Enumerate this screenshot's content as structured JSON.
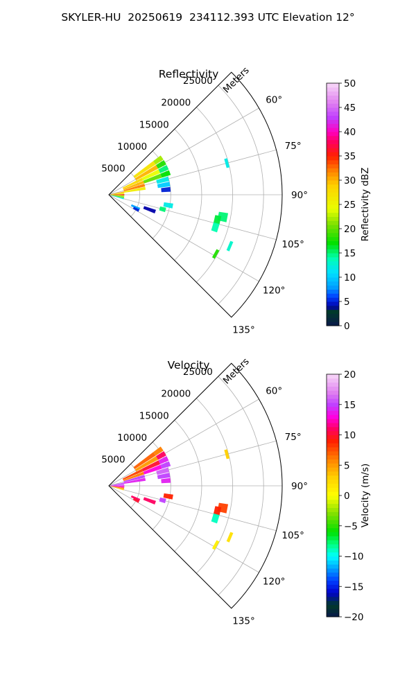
{
  "figure": {
    "title": "SKYLER-HU  20250619  234112.393 UTC Elevation 12°"
  },
  "chart_data": [
    {
      "type": "polar-sector",
      "title": "Reflectivity",
      "range_label": "Meters",
      "angle_range_deg": [
        45,
        135
      ],
      "r_max": 28000,
      "r_ticks": [
        5000,
        10000,
        15000,
        20000,
        25000
      ],
      "angle_ticks": [
        60,
        75,
        90,
        105,
        120,
        135
      ],
      "grid": true,
      "colorbar": {
        "label": "Reflectivity dBZ",
        "min": 0,
        "max": 50,
        "ticks": [
          0,
          5,
          10,
          15,
          20,
          25,
          30,
          35,
          40,
          45,
          50
        ]
      },
      "echoes": [
        {
          "az": 80,
          "r_from": 300,
          "r_to": 2500,
          "value": 30
        },
        {
          "az": 85,
          "r_from": 300,
          "r_to": 2500,
          "value": 25
        },
        {
          "az": 90,
          "r_from": 300,
          "r_to": 2500,
          "value": 35
        },
        {
          "az": 95,
          "r_from": 300,
          "r_to": 2500,
          "value": 22
        },
        {
          "az": 100,
          "r_from": 300,
          "r_to": 2500,
          "value": 20
        },
        {
          "az": 105,
          "r_from": 300,
          "r_to": 2500,
          "value": 12
        },
        {
          "az": 65,
          "r_from": 2500,
          "r_to": 6000,
          "value": 28
        },
        {
          "az": 70,
          "r_from": 2500,
          "r_to": 6000,
          "value": 30
        },
        {
          "az": 75,
          "r_from": 2500,
          "r_to": 6000,
          "value": 32
        },
        {
          "az": 80,
          "r_from": 2500,
          "r_to": 6000,
          "value": 26
        },
        {
          "az": 55,
          "r_from": 5000,
          "r_to": 9000,
          "value": 27
        },
        {
          "az": 60,
          "r_from": 5000,
          "r_to": 9000,
          "value": 30
        },
        {
          "az": 65,
          "r_from": 6000,
          "r_to": 9000,
          "value": 24
        },
        {
          "az": 70,
          "r_from": 6000,
          "r_to": 9000,
          "value": 20
        },
        {
          "az": 55,
          "r_from": 9000,
          "r_to": 10500,
          "value": 22
        },
        {
          "az": 60,
          "r_from": 9000,
          "r_to": 10500,
          "value": 18
        },
        {
          "az": 65,
          "r_from": 9000,
          "r_to": 10500,
          "value": 15
        },
        {
          "az": 70,
          "r_from": 9000,
          "r_to": 10500,
          "value": 17
        },
        {
          "az": 75,
          "r_from": 8000,
          "r_to": 10000,
          "value": 12
        },
        {
          "az": 80,
          "r_from": 8000,
          "r_to": 10000,
          "value": 10
        },
        {
          "az": 85,
          "r_from": 8500,
          "r_to": 10000,
          "value": 5
        },
        {
          "az": 100,
          "r_from": 9000,
          "r_to": 10500,
          "value": 12
        },
        {
          "az": 105,
          "r_from": 8500,
          "r_to": 9500,
          "value": 15
        },
        {
          "az": 110,
          "r_from": 6000,
          "r_to": 8000,
          "value": 4
        },
        {
          "az": 115,
          "r_from": 4000,
          "r_to": 5500,
          "value": 8
        },
        {
          "az": 118,
          "r_from": 4500,
          "r_to": 5500,
          "value": 5
        },
        {
          "az": 75,
          "r_from": 19500,
          "r_to": 20000,
          "value": 12
        },
        {
          "az": 101,
          "r_from": 18000,
          "r_to": 19500,
          "value": 15
        },
        {
          "az": 103,
          "r_from": 17500,
          "r_to": 18500,
          "value": 16
        },
        {
          "az": 107,
          "r_from": 17500,
          "r_to": 18500,
          "value": 14
        },
        {
          "az": 113,
          "r_from": 21000,
          "r_to": 21500,
          "value": 13
        },
        {
          "az": 119,
          "r_from": 19500,
          "r_to": 20000,
          "value": 18
        }
      ]
    },
    {
      "type": "polar-sector",
      "title": "Velocity",
      "range_label": "Meters",
      "angle_range_deg": [
        45,
        135
      ],
      "r_max": 28000,
      "r_ticks": [
        5000,
        10000,
        15000,
        20000,
        25000
      ],
      "angle_ticks": [
        60,
        75,
        90,
        105,
        120,
        135
      ],
      "grid": true,
      "colorbar": {
        "label": "Velocity (m/s)",
        "min": -20,
        "max": 20,
        "ticks": [
          -20,
          -15,
          -10,
          -5,
          0,
          5,
          10,
          15,
          20
        ]
      },
      "echoes": [
        {
          "az": 80,
          "r_from": 300,
          "r_to": 2500,
          "value": 15
        },
        {
          "az": 85,
          "r_from": 300,
          "r_to": 2500,
          "value": 16
        },
        {
          "az": 90,
          "r_from": 300,
          "r_to": 2500,
          "value": 14
        },
        {
          "az": 95,
          "r_from": 300,
          "r_to": 2500,
          "value": 12
        },
        {
          "az": 100,
          "r_from": 300,
          "r_to": 2500,
          "value": 6
        },
        {
          "az": 105,
          "r_from": 300,
          "r_to": 2500,
          "value": 3
        },
        {
          "az": 65,
          "r_from": 2500,
          "r_to": 6000,
          "value": 8
        },
        {
          "az": 70,
          "r_from": 2500,
          "r_to": 6000,
          "value": 6
        },
        {
          "az": 75,
          "r_from": 2500,
          "r_to": 6000,
          "value": 15
        },
        {
          "az": 80,
          "r_from": 2500,
          "r_to": 6000,
          "value": 14
        },
        {
          "az": 55,
          "r_from": 5000,
          "r_to": 9000,
          "value": 7
        },
        {
          "az": 60,
          "r_from": 5000,
          "r_to": 9000,
          "value": 5
        },
        {
          "az": 65,
          "r_from": 6000,
          "r_to": 9000,
          "value": 10
        },
        {
          "az": 70,
          "r_from": 6000,
          "r_to": 9000,
          "value": 13
        },
        {
          "az": 55,
          "r_from": 9000,
          "r_to": 10500,
          "value": 6
        },
        {
          "az": 60,
          "r_from": 9000,
          "r_to": 10500,
          "value": 11
        },
        {
          "az": 65,
          "r_from": 9000,
          "r_to": 10500,
          "value": 14
        },
        {
          "az": 70,
          "r_from": 9000,
          "r_to": 10500,
          "value": 15
        },
        {
          "az": 75,
          "r_from": 8000,
          "r_to": 10000,
          "value": 16
        },
        {
          "az": 80,
          "r_from": 8000,
          "r_to": 10000,
          "value": 15
        },
        {
          "az": 85,
          "r_from": 8500,
          "r_to": 10000,
          "value": 14
        },
        {
          "az": 100,
          "r_from": 9000,
          "r_to": 10500,
          "value": 9
        },
        {
          "az": 105,
          "r_from": 8500,
          "r_to": 9500,
          "value": 15
        },
        {
          "az": 110,
          "r_from": 6000,
          "r_to": 8000,
          "value": 11
        },
        {
          "az": 115,
          "r_from": 4000,
          "r_to": 5500,
          "value": 11
        },
        {
          "az": 118,
          "r_from": 4500,
          "r_to": 5500,
          "value": 10
        },
        {
          "az": 75,
          "r_from": 19500,
          "r_to": 20000,
          "value": 3
        },
        {
          "az": 101,
          "r_from": 18000,
          "r_to": 19500,
          "value": 8
        },
        {
          "az": 103,
          "r_from": 17500,
          "r_to": 18500,
          "value": 9
        },
        {
          "az": 107,
          "r_from": 17500,
          "r_to": 18500,
          "value": -9
        },
        {
          "az": 113,
          "r_from": 21000,
          "r_to": 21500,
          "value": 2
        },
        {
          "az": 119,
          "r_from": 19500,
          "r_to": 20000,
          "value": 1
        }
      ]
    }
  ]
}
